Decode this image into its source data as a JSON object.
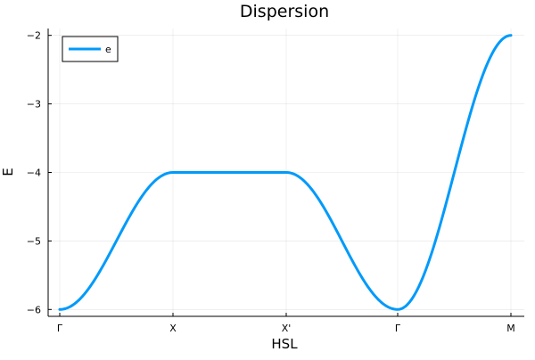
{
  "chart_data": {
    "type": "line",
    "title": "Dispersion",
    "xlabel": "HSL",
    "ylabel": "E",
    "xticks": [
      "Γ",
      "X",
      "X'",
      "Γ",
      "M"
    ],
    "yticks": [
      -6,
      -5,
      -4,
      -3,
      -2
    ],
    "ytick_labels": [
      "−6",
      "−5",
      "−4",
      "−3",
      "−2"
    ],
    "ylim": [
      -6.1,
      -1.9
    ],
    "grid": true,
    "legend_position": "top-left",
    "series": [
      {
        "name": "e",
        "color": "#009AFA",
        "segments": [
          {
            "from": "Γ",
            "to": "X",
            "model": "cos",
            "e_start": -6,
            "e_end": -4
          },
          {
            "from": "X",
            "to": "X'",
            "model": "flat",
            "e_start": -4,
            "e_end": -4
          },
          {
            "from": "X'",
            "to": "Γ",
            "model": "cos",
            "e_start": -4,
            "e_end": -6
          },
          {
            "from": "Γ",
            "to": "M",
            "model": "cos",
            "e_start": -6,
            "e_end": -2
          }
        ]
      }
    ]
  }
}
